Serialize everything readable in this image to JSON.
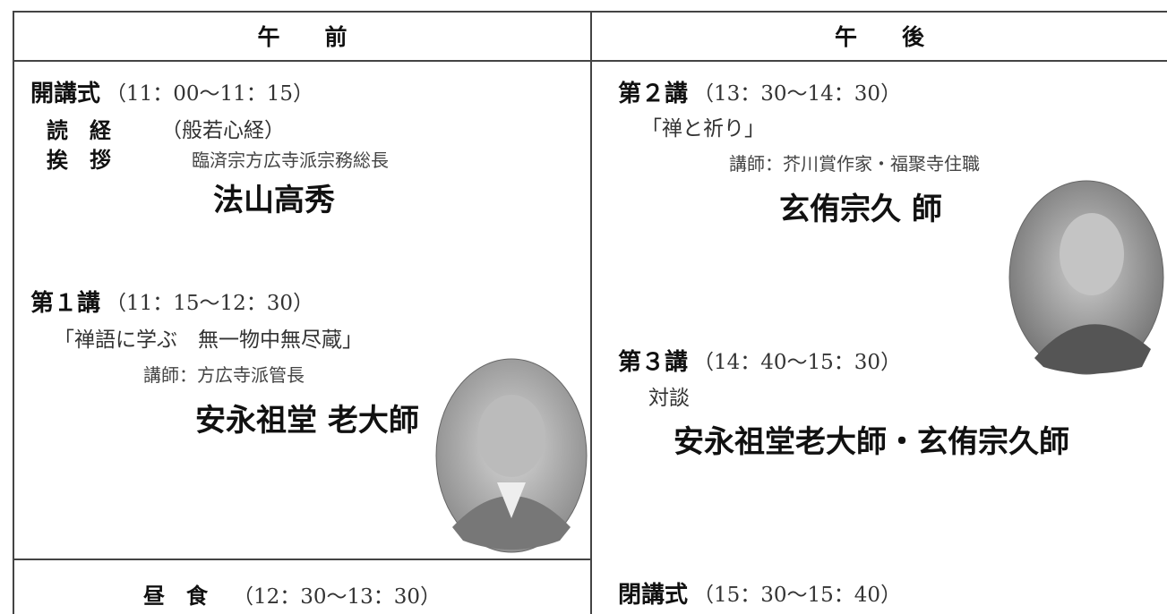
{
  "header": {
    "morning": "午　　前",
    "afternoon": "午　　後"
  },
  "morning": {
    "opening": {
      "label": "開講式",
      "time": "（11：00〜11：15）"
    },
    "sutra": {
      "label": "読　経",
      "text": "（般若心経）"
    },
    "greeting": {
      "label": "挨　拶",
      "role": "臨済宗方広寺派宗務総長",
      "name": "法山高秀"
    },
    "lecture1": {
      "label": "第１講",
      "time": "（11：15〜12：30）",
      "title": "「禅語に学ぶ　無一物中無尽蔵」",
      "speaker_role": "講師：方広寺派管長",
      "speaker": "安永祖堂 老大師"
    },
    "lunch": {
      "label": "昼　食",
      "time": "（12：30〜13：30）"
    }
  },
  "afternoon": {
    "lecture2": {
      "label": "第２講",
      "time": "（13：30〜14：30）",
      "title": "「禅と祈り」",
      "speaker_role": "講師：芥川賞作家・福聚寺住職",
      "speaker": "玄侑宗久 師"
    },
    "lecture3": {
      "label": "第３講",
      "time": "（14：40〜15：30）",
      "format": "対談",
      "speakers": "安永祖堂老大師・玄侑宗久師"
    },
    "closing": {
      "label": "閉講式",
      "time": "（15：30〜15：40）"
    }
  }
}
